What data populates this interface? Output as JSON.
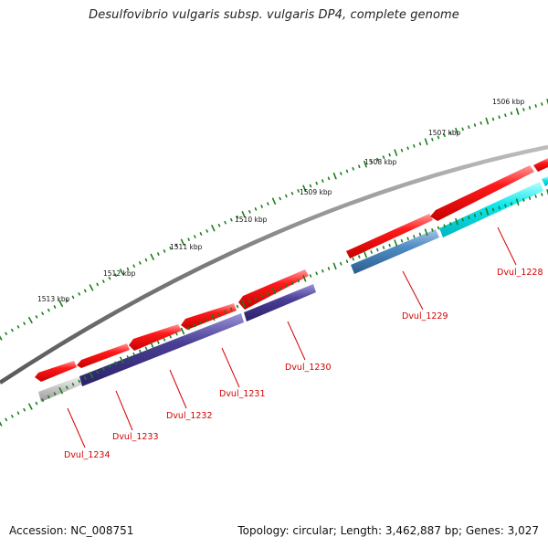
{
  "title": "Desulfovibrio vulgaris subsp. vulgaris DP4, complete genome",
  "footer": {
    "accession": "Accession: NC_008751",
    "topology": "Topology: circular; Length: 3,462,887 bp; Genes: 3,027"
  },
  "ruler_labels": [
    "1506 kbp",
    "1507 kbp",
    "1508 kbp",
    "1509 kbp",
    "1510 kbp",
    "1511 kbp",
    "1512 kbp",
    "1513 kbp"
  ],
  "genes": [
    {
      "label": "Dvul_1228",
      "forward_color": "#ff0000",
      "feature_color": "#00ffff"
    },
    {
      "label": "Dvul_1229",
      "forward_color": "#ff0000",
      "feature_color": "#4682b4"
    },
    {
      "label": "Dvul_1230",
      "forward_color": "#ff0000",
      "feature_color": "#483d8b"
    },
    {
      "label": "Dvul_1231",
      "forward_color": "#ff0000",
      "feature_color": "#483d8b"
    },
    {
      "label": "Dvul_1232",
      "forward_color": "#ff0000",
      "feature_color": "#483d8b"
    },
    {
      "label": "Dvul_1233",
      "forward_color": "#ff0000",
      "feature_color": "#483d8b"
    },
    {
      "label": "Dvul_1234",
      "forward_color": "#ff0000",
      "feature_color": "#c0c0c0"
    }
  ],
  "colors": {
    "backbone": "#777777",
    "ruler_ticks": "#1a7f1a",
    "label_color": "#d40000"
  }
}
